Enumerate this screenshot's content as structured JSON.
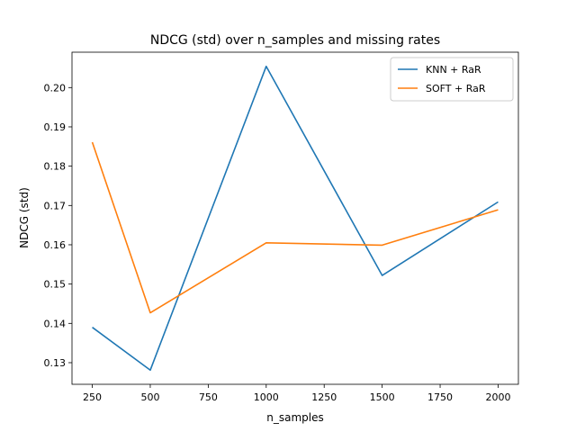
{
  "chart_data": {
    "type": "line",
    "title": "NDCG (std) over n_samples and missing rates",
    "xlabel": "n_samples",
    "ylabel": "NDCG (std)",
    "x": [
      250,
      500,
      1000,
      1500,
      2000
    ],
    "series": [
      {
        "name": "KNN + RaR",
        "color": "#1f77b4",
        "values": [
          0.139,
          0.1281,
          0.2054,
          0.1522,
          0.1709
        ]
      },
      {
        "name": "SOFT + RaR",
        "color": "#ff7f0e",
        "values": [
          0.1861,
          0.1427,
          0.1605,
          0.1599,
          0.1689
        ]
      }
    ],
    "xlim": [
      162.5,
      2087.5
    ],
    "ylim": [
      0.1245,
      0.209
    ],
    "xticks": [
      250,
      500,
      750,
      1000,
      1250,
      1500,
      1750,
      2000
    ],
    "yticks": [
      0.13,
      0.14,
      0.15,
      0.16,
      0.17,
      0.18,
      0.19,
      0.2
    ],
    "ytick_labels": [
      "0.13",
      "0.14",
      "0.15",
      "0.16",
      "0.17",
      "0.18",
      "0.19",
      "0.20"
    ],
    "grid": false,
    "legend_position": "top-right"
  }
}
